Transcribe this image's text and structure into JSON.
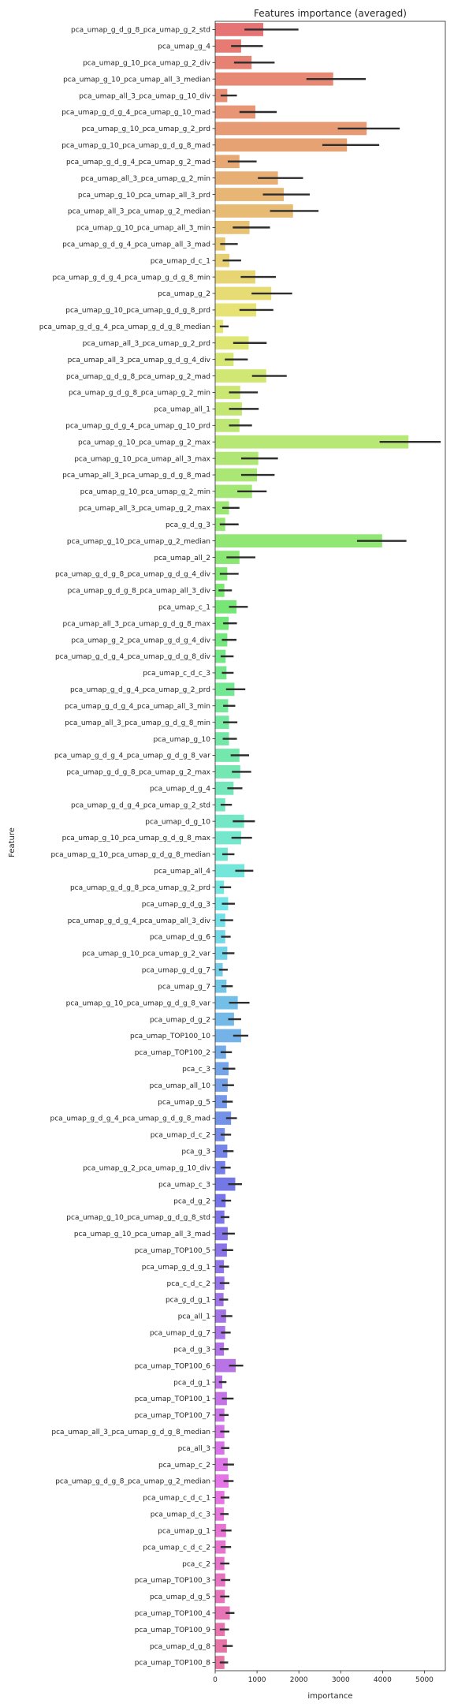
{
  "chart_data": {
    "type": "bar",
    "orientation": "horizontal",
    "title": "Features importance (averaged)",
    "xlabel": "importance",
    "ylabel": "Feature",
    "xlim": [
      0,
      5500
    ],
    "xticks": [
      0,
      1000,
      2000,
      3000,
      4000,
      5000
    ],
    "grid": false,
    "legend": "none",
    "error_bars": true,
    "categories": [
      "pca_umap_g_d_g_8_pca_umap_g_2_std",
      "pca_umap_g_4",
      "pca_umap_g_10_pca_umap_g_2_div",
      "pca_umap_g_10_pca_umap_all_3_median",
      "pca_umap_all_3_pca_umap_g_10_div",
      "pca_umap_g_d_g_4_pca_umap_g_10_mad",
      "pca_umap_g_10_pca_umap_g_2_prd",
      "pca_umap_g_10_pca_umap_g_d_g_8_mad",
      "pca_umap_g_d_g_4_pca_umap_g_2_mad",
      "pca_umap_all_3_pca_umap_g_2_min",
      "pca_umap_g_10_pca_umap_all_3_prd",
      "pca_umap_all_3_pca_umap_g_2_median",
      "pca_umap_g_10_pca_umap_all_3_min",
      "pca_umap_g_d_g_4_pca_umap_all_3_mad",
      "pca_umap_d_c_1",
      "pca_umap_g_d_g_4_pca_umap_g_d_g_8_min",
      "pca_umap_g_2",
      "pca_umap_g_10_pca_umap_g_d_g_8_prd",
      "pca_umap_g_d_g_4_pca_umap_g_d_g_8_median",
      "pca_umap_all_3_pca_umap_g_2_prd",
      "pca_umap_all_3_pca_umap_g_d_g_4_div",
      "pca_umap_g_d_g_8_pca_umap_g_2_mad",
      "pca_umap_g_d_g_8_pca_umap_g_2_min",
      "pca_umap_all_1",
      "pca_umap_g_d_g_4_pca_umap_g_10_prd",
      "pca_umap_g_10_pca_umap_g_2_max",
      "pca_umap_g_10_pca_umap_all_3_max",
      "pca_umap_all_3_pca_umap_g_d_g_8_mad",
      "pca_umap_g_10_pca_umap_g_2_min",
      "pca_umap_all_3_pca_umap_g_2_max",
      "pca_g_d_g_3",
      "pca_umap_g_10_pca_umap_g_2_median",
      "pca_umap_all_2",
      "pca_umap_g_d_g_8_pca_umap_g_d_g_4_div",
      "pca_umap_g_d_g_8_pca_umap_all_3_div",
      "pca_umap_c_1",
      "pca_umap_all_3_pca_umap_g_d_g_8_max",
      "pca_umap_g_2_pca_umap_g_d_g_4_div",
      "pca_umap_g_d_g_4_pca_umap_g_d_g_8_div",
      "pca_umap_c_d_c_3",
      "pca_umap_g_d_g_4_pca_umap_g_2_prd",
      "pca_umap_g_d_g_4_pca_umap_all_3_min",
      "pca_umap_all_3_pca_umap_g_d_g_8_min",
      "pca_umap_g_10",
      "pca_umap_g_d_g_4_pca_umap_g_d_g_8_var",
      "pca_umap_g_d_g_8_pca_umap_g_2_max",
      "pca_umap_d_g_4",
      "pca_umap_g_d_g_4_pca_umap_g_2_std",
      "pca_umap_d_g_10",
      "pca_umap_g_10_pca_umap_g_d_g_8_max",
      "pca_umap_g_10_pca_umap_g_d_g_8_median",
      "pca_umap_all_4",
      "pca_umap_g_d_g_8_pca_umap_g_2_prd",
      "pca_umap_g_d_g_3",
      "pca_umap_g_d_g_4_pca_umap_all_3_div",
      "pca_umap_d_g_6",
      "pca_umap_g_10_pca_umap_g_2_var",
      "pca_umap_g_d_g_7",
      "pca_umap_g_7",
      "pca_umap_g_10_pca_umap_g_d_g_8_var",
      "pca_umap_d_g_2",
      "pca_umap_TOP100_10",
      "pca_umap_TOP100_2",
      "pca_c_3",
      "pca_umap_all_10",
      "pca_umap_g_5",
      "pca_umap_g_d_g_4_pca_umap_g_d_g_8_mad",
      "pca_umap_d_c_2",
      "pca_g_3",
      "pca_umap_g_2_pca_umap_g_10_div",
      "pca_umap_c_3",
      "pca_d_g_2",
      "pca_umap_g_10_pca_umap_g_d_g_8_std",
      "pca_umap_g_10_pca_umap_all_3_mad",
      "pca_umap_TOP100_5",
      "pca_umap_g_d_g_1",
      "pca_c_d_c_2",
      "pca_g_d_g_1",
      "pca_all_1",
      "pca_umap_d_g_7",
      "pca_d_g_3",
      "pca_umap_TOP100_6",
      "pca_d_g_1",
      "pca_umap_TOP100_1",
      "pca_umap_TOP100_7",
      "pca_umap_all_3_pca_umap_g_d_g_8_median",
      "pca_all_3",
      "pca_umap_c_2",
      "pca_umap_g_d_g_8_pca_umap_g_2_median",
      "pca_umap_c_d_c_1",
      "pca_umap_d_c_3",
      "pca_umap_g_1",
      "pca_umap_c_d_c_2",
      "pca_c_2",
      "pca_umap_TOP100_3",
      "pca_umap_d_g_5",
      "pca_umap_TOP100_4",
      "pca_umap_TOP100_9",
      "pca_umap_d_g_8",
      "pca_umap_TOP100_8"
    ],
    "values": [
      1150,
      620,
      870,
      2820,
      290,
      960,
      3620,
      3150,
      580,
      1500,
      1640,
      1860,
      820,
      240,
      340,
      960,
      1340,
      980,
      190,
      800,
      440,
      1220,
      600,
      640,
      580,
      4620,
      1030,
      1000,
      880,
      330,
      240,
      3990,
      580,
      290,
      220,
      510,
      320,
      290,
      250,
      270,
      460,
      310,
      330,
      330,
      580,
      600,
      440,
      240,
      690,
      620,
      300,
      700,
      210,
      310,
      240,
      240,
      290,
      180,
      270,
      540,
      450,
      620,
      260,
      320,
      300,
      280,
      380,
      230,
      290,
      240,
      480,
      250,
      220,
      300,
      280,
      210,
      220,
      200,
      260,
      240,
      210,
      490,
      170,
      280,
      220,
      220,
      220,
      300,
      320,
      220,
      210,
      260,
      250,
      220,
      240,
      230,
      350,
      230,
      280,
      220
    ],
    "errors": [
      [
        700,
        1990
      ],
      [
        380,
        1140
      ],
      [
        450,
        1420
      ],
      [
        2180,
        3600
      ],
      [
        130,
        520
      ],
      [
        580,
        1470
      ],
      [
        2930,
        4410
      ],
      [
        2560,
        3920
      ],
      [
        300,
        990
      ],
      [
        1020,
        2100
      ],
      [
        1140,
        2260
      ],
      [
        1310,
        2470
      ],
      [
        420,
        1310
      ],
      [
        120,
        540
      ],
      [
        180,
        620
      ],
      [
        610,
        1450
      ],
      [
        870,
        1840
      ],
      [
        580,
        1390
      ],
      [
        110,
        320
      ],
      [
        430,
        1230
      ],
      [
        230,
        780
      ],
      [
        880,
        1710
      ],
      [
        330,
        1020
      ],
      [
        330,
        1040
      ],
      [
        330,
        880
      ],
      [
        3930,
        5390
      ],
      [
        620,
        1500
      ],
      [
        620,
        1420
      ],
      [
        530,
        1230
      ],
      [
        170,
        580
      ],
      [
        110,
        560
      ],
      [
        3390,
        4570
      ],
      [
        270,
        960
      ],
      [
        110,
        560
      ],
      [
        80,
        400
      ],
      [
        330,
        780
      ],
      [
        190,
        520
      ],
      [
        160,
        510
      ],
      [
        130,
        440
      ],
      [
        160,
        440
      ],
      [
        260,
        720
      ],
      [
        190,
        480
      ],
      [
        190,
        530
      ],
      [
        180,
        520
      ],
      [
        370,
        810
      ],
      [
        400,
        860
      ],
      [
        290,
        650
      ],
      [
        130,
        400
      ],
      [
        420,
        950
      ],
      [
        390,
        880
      ],
      [
        170,
        460
      ],
      [
        480,
        910
      ],
      [
        110,
        380
      ],
      [
        160,
        470
      ],
      [
        120,
        430
      ],
      [
        140,
        370
      ],
      [
        170,
        460
      ],
      [
        90,
        300
      ],
      [
        150,
        420
      ],
      [
        330,
        820
      ],
      [
        310,
        620
      ],
      [
        430,
        790
      ],
      [
        130,
        400
      ],
      [
        180,
        480
      ],
      [
        170,
        450
      ],
      [
        170,
        420
      ],
      [
        260,
        520
      ],
      [
        130,
        380
      ],
      [
        190,
        440
      ],
      [
        130,
        370
      ],
      [
        310,
        640
      ],
      [
        150,
        380
      ],
      [
        130,
        340
      ],
      [
        170,
        470
      ],
      [
        160,
        430
      ],
      [
        100,
        330
      ],
      [
        110,
        340
      ],
      [
        100,
        310
      ],
      [
        140,
        410
      ],
      [
        140,
        370
      ],
      [
        110,
        320
      ],
      [
        330,
        670
      ],
      [
        90,
        270
      ],
      [
        160,
        440
      ],
      [
        100,
        320
      ],
      [
        120,
        340
      ],
      [
        140,
        340
      ],
      [
        190,
        450
      ],
      [
        200,
        440
      ],
      [
        130,
        340
      ],
      [
        120,
        320
      ],
      [
        140,
        390
      ],
      [
        130,
        380
      ],
      [
        120,
        340
      ],
      [
        140,
        360
      ],
      [
        120,
        340
      ],
      [
        250,
        460
      ],
      [
        110,
        330
      ],
      [
        180,
        420
      ],
      [
        110,
        310
      ]
    ]
  }
}
